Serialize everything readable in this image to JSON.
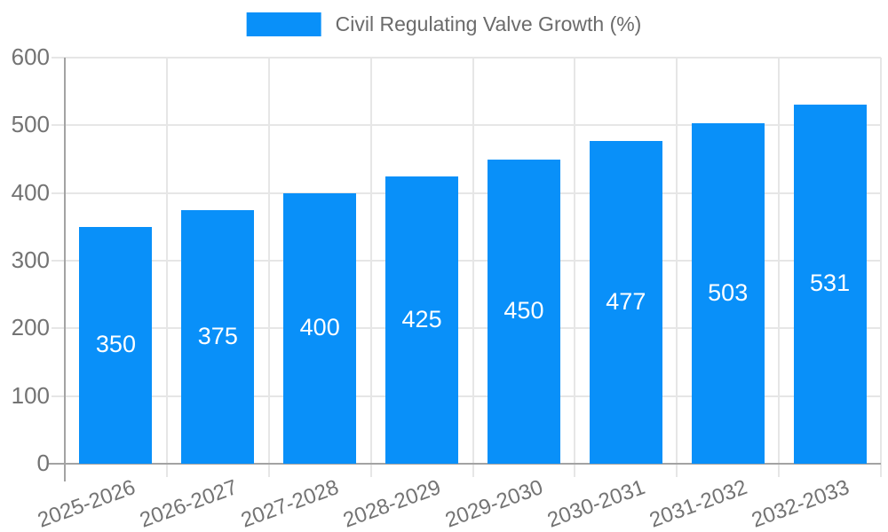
{
  "legend": {
    "label": "Civil Regulating Valve Growth (%)"
  },
  "colors": {
    "bar": "#0990f9",
    "grid": "#e6e6e6",
    "axis": "#a3a3a3",
    "tick_label": "#737373",
    "legend_text": "#6b6b6b",
    "value_label": "#ffffff",
    "background": "#ffffff"
  },
  "chart_data": {
    "type": "bar",
    "title": "",
    "xlabel": "",
    "ylabel": "",
    "categories": [
      "2025-2026",
      "2026-2027",
      "2027-2028",
      "2028-2029",
      "2029-2030",
      "2030-2031",
      "2031-2032",
      "2032-2033"
    ],
    "values": [
      350,
      375,
      400,
      425,
      450,
      477,
      503,
      531
    ],
    "series": [
      {
        "name": "Civil Regulating Valve Growth (%)",
        "values": [
          350,
          375,
          400,
          425,
          450,
          477,
          503,
          531
        ]
      }
    ],
    "ylim": [
      0,
      600
    ],
    "ytick_step": 100,
    "yticks": [
      0,
      100,
      200,
      300,
      400,
      500,
      600
    ],
    "grid": "on",
    "legend_position": "top-center",
    "value_labels": "inside-center-white",
    "xtick_rotation_deg": -20,
    "bar_color": "#0990f9"
  }
}
